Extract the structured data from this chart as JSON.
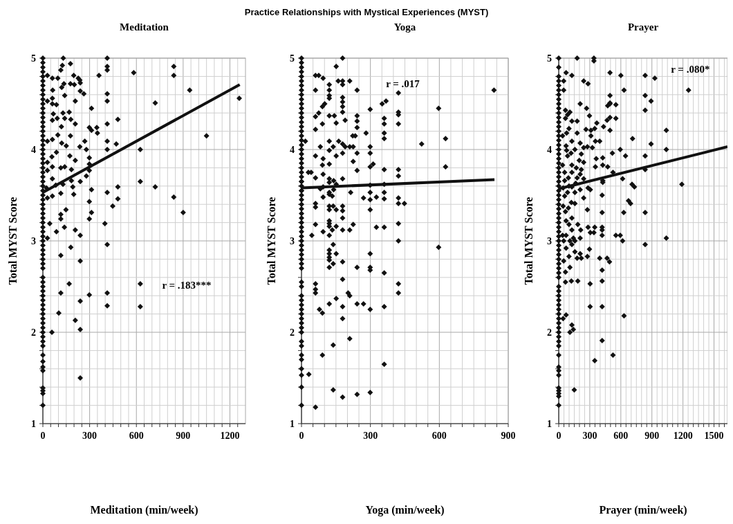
{
  "chart_data": [
    {
      "type": "scatter",
      "title": "Meditation",
      "xlabel": "Meditation (min/week)",
      "ylabel": "Total MYST Score",
      "xlim": [
        0,
        1300
      ],
      "ylim": [
        1,
        5
      ],
      "xticks": [
        0,
        {
          "value": 50,
          "label": null
        },
        {
          "value": 100,
          "label": null
        },
        {
          "value": 150,
          "label": null
        },
        {
          "value": 200,
          "label": null
        },
        {
          "value": 250,
          "label": null
        },
        300,
        {
          "value": 350,
          "label": null
        },
        {
          "value": 400,
          "label": null
        },
        {
          "value": 450,
          "label": null
        },
        {
          "value": 500,
          "label": null
        },
        {
          "value": 550,
          "label": null
        },
        600,
        {
          "value": 650,
          "label": null
        },
        {
          "value": 700,
          "label": null
        },
        {
          "value": 750,
          "label": null
        },
        {
          "value": 800,
          "label": null
        },
        {
          "value": 850,
          "label": null
        },
        900,
        {
          "value": 950,
          "label": null
        },
        {
          "value": 1000,
          "label": null
        },
        {
          "value": 1050,
          "label": null
        },
        {
          "value": 1100,
          "label": null
        },
        {
          "value": 1150,
          "label": null
        },
        1200,
        {
          "value": 1250,
          "label": null
        }
      ],
      "yticks": [
        1,
        {
          "value": 1.2,
          "label": null
        },
        {
          "value": 1.4,
          "label": null
        },
        {
          "value": 1.6,
          "label": null
        },
        {
          "value": 1.8,
          "label": null
        },
        2,
        {
          "value": 2.2,
          "label": null
        },
        {
          "value": 2.4,
          "label": null
        },
        {
          "value": 2.6,
          "label": null
        },
        {
          "value": 2.8,
          "label": null
        },
        3,
        {
          "value": 3.2,
          "label": null
        },
        {
          "value": 3.4,
          "label": null
        },
        {
          "value": 3.6,
          "label": null
        },
        {
          "value": 3.8,
          "label": null
        },
        4,
        {
          "value": 4.2,
          "label": null
        },
        {
          "value": 4.4,
          "label": null
        },
        {
          "value": 4.6,
          "label": null
        },
        {
          "value": 4.8,
          "label": null
        },
        5
      ],
      "grid": true,
      "annotations": [
        "Practice Relationships with Mystical Experiences (MYST)",
        "r = .183***"
      ],
      "series": [
        {
          "marker": "diamond",
          "color": "#111111",
          "x": [
            0,
            0,
            0,
            0,
            0,
            0,
            0,
            0,
            0,
            0,
            0,
            0,
            0,
            0,
            0,
            0,
            0,
            0,
            0,
            0,
            0,
            0,
            0,
            0,
            0,
            0,
            0,
            0,
            0,
            0,
            0,
            0,
            0,
            0,
            0,
            0,
            0,
            0,
            0,
            0,
            0,
            0,
            0,
            0,
            0,
            0,
            0,
            0,
            0,
            0,
            0,
            0,
            0,
            0,
            0,
            0,
            0,
            0,
            0,
            0,
            0,
            0,
            0,
            0,
            0,
            0,
            0,
            0,
            0,
            0,
            0,
            131,
            413,
            177,
            125,
            413,
            840,
            413,
            115,
            29,
            360,
            583,
            840,
            61,
            96,
            227,
            237,
            240,
            198,
            135,
            177,
            202,
            121,
            942,
            240,
            263,
            63,
            140,
            413,
            61,
            29,
            208,
            413,
            721,
            1260,
            61,
            87,
            312,
            169,
            129,
            67,
            481,
            61,
            92,
            140,
            179,
            208,
            413,
            119,
            298,
            346,
            312,
            350,
            177,
            1050,
            96,
            29,
            61,
            121,
            269,
            413,
            471,
            237,
            150,
            279,
            413,
            625,
            87,
            173,
            58,
            298,
            29,
            208,
            140,
            115,
            298,
            61,
            183,
            298,
            29,
            279,
            61,
            625,
            240,
            183,
            721,
            481,
            129,
            83,
            192,
            23,
            312,
            413,
            115,
            198,
            61,
            840,
            29,
            481,
            298,
            448,
            148,
            312,
            900,
            115,
            115,
            298,
            44,
            398,
            138,
            208,
            87,
            240,
            29,
            413,
            179,
            115,
            240,
            625,
            169,
            115,
            413,
            298,
            240,
            413,
            625,
            102,
            208,
            240,
            58,
            240
          ],
          "values": [
            1.2,
            1.33,
            1.36,
            1.39,
            1.58,
            1.62,
            1.68,
            1.75,
            1.85,
            1.9,
            1.95,
            2.0,
            2.05,
            2.1,
            2.15,
            2.2,
            2.25,
            2.3,
            2.35,
            2.4,
            2.45,
            2.5,
            2.55,
            2.6,
            2.7,
            2.75,
            2.8,
            2.85,
            2.9,
            2.95,
            3.0,
            3.05,
            3.1,
            3.15,
            3.2,
            3.25,
            3.3,
            3.35,
            3.4,
            3.45,
            3.5,
            3.55,
            3.6,
            3.65,
            3.7,
            3.75,
            3.8,
            3.85,
            3.9,
            3.95,
            4.0,
            4.05,
            4.1,
            4.15,
            4.2,
            4.25,
            4.3,
            4.35,
            4.4,
            4.45,
            4.5,
            4.55,
            4.6,
            4.65,
            4.7,
            4.75,
            4.8,
            4.85,
            4.9,
            4.95,
            5.0,
            5.0,
            5.0,
            4.94,
            4.92,
            4.91,
            4.91,
            4.87,
            4.87,
            4.81,
            4.81,
            4.84,
            4.81,
            4.78,
            4.78,
            4.78,
            4.76,
            4.73,
            4.81,
            4.72,
            4.72,
            4.71,
            4.68,
            4.65,
            4.64,
            4.61,
            4.65,
            4.59,
            4.61,
            4.56,
            4.53,
            4.53,
            4.53,
            4.51,
            4.56,
            4.5,
            4.49,
            4.45,
            4.41,
            4.4,
            4.39,
            4.33,
            4.32,
            4.34,
            4.34,
            4.33,
            4.28,
            4.28,
            4.25,
            4.24,
            4.24,
            4.21,
            4.18,
            4.15,
            4.15,
            4.16,
            4.09,
            4.11,
            4.07,
            4.09,
            4.09,
            4.06,
            4.03,
            4.04,
            4.0,
            4.0,
            4.0,
            3.97,
            3.93,
            3.92,
            3.91,
            3.86,
            3.88,
            3.81,
            3.8,
            3.84,
            3.81,
            3.78,
            3.77,
            3.77,
            3.71,
            3.68,
            3.65,
            3.65,
            3.66,
            3.59,
            3.59,
            3.62,
            3.61,
            3.59,
            3.58,
            3.56,
            3.53,
            3.52,
            3.51,
            3.49,
            3.48,
            3.47,
            3.46,
            3.43,
            3.38,
            3.34,
            3.31,
            3.31,
            3.29,
            3.24,
            3.24,
            3.19,
            3.19,
            3.15,
            3.12,
            3.1,
            3.06,
            3.03,
            2.96,
            2.93,
            2.84,
            2.78,
            2.53,
            2.53,
            2.43,
            2.43,
            2.41,
            2.34,
            2.29,
            2.28,
            2.21,
            2.13,
            2.03,
            2.0,
            1.5
          ]
        },
        {
          "type": "line",
          "color": "#111111",
          "x": [
            0,
            1263
          ],
          "values": [
            3.53,
            4.71
          ]
        }
      ]
    },
    {
      "type": "scatter",
      "title": "Yoga",
      "xlabel": "Yoga (min/week)",
      "ylabel": "Total MYST Score",
      "xlim": [
        0,
        900
      ],
      "ylim": [
        1,
        5
      ],
      "xticks": [
        0,
        {
          "value": 50,
          "label": null
        },
        {
          "value": 100,
          "label": null
        },
        {
          "value": 150,
          "label": null
        },
        {
          "value": 200,
          "label": null
        },
        {
          "value": 250,
          "label": null
        },
        300,
        {
          "value": 350,
          "label": null
        },
        {
          "value": 400,
          "label": null
        },
        {
          "value": 450,
          "label": null
        },
        {
          "value": 500,
          "label": null
        },
        {
          "value": 550,
          "label": null
        },
        600,
        {
          "value": 650,
          "label": null
        },
        {
          "value": 700,
          "label": null
        },
        {
          "value": 750,
          "label": null
        },
        {
          "value": 800,
          "label": null
        },
        {
          "value": 850,
          "label": null
        },
        900
      ],
      "yticks": [
        1,
        {
          "value": 1.2,
          "label": null
        },
        {
          "value": 1.4,
          "label": null
        },
        {
          "value": 1.6,
          "label": null
        },
        {
          "value": 1.8,
          "label": null
        },
        2,
        {
          "value": 2.2,
          "label": null
        },
        {
          "value": 2.4,
          "label": null
        },
        {
          "value": 2.6,
          "label": null
        },
        {
          "value": 2.8,
          "label": null
        },
        3,
        {
          "value": 3.2,
          "label": null
        },
        {
          "value": 3.4,
          "label": null
        },
        {
          "value": 3.6,
          "label": null
        },
        {
          "value": 3.8,
          "label": null
        },
        4,
        {
          "value": 4.2,
          "label": null
        },
        {
          "value": 4.4,
          "label": null
        },
        {
          "value": 4.6,
          "label": null
        },
        {
          "value": 4.8,
          "label": null
        },
        5
      ],
      "grid": true,
      "annotations": [
        "r = .017"
      ],
      "series": [
        {
          "marker": "diamond",
          "color": "#111111",
          "x": [
            0,
            0,
            0,
            0,
            0,
            0,
            0,
            0,
            0,
            0,
            0,
            0,
            0,
            0,
            0,
            0,
            0,
            0,
            0,
            0,
            0,
            0,
            0,
            0,
            0,
            0,
            0,
            0,
            0,
            0,
            0,
            0,
            0,
            0,
            0,
            0,
            0,
            0,
            0,
            0,
            0,
            0,
            0,
            0,
            0,
            0,
            0,
            0,
            0,
            0,
            0,
            0,
            0,
            0,
            0,
            0,
            0,
            0,
            0,
            0,
            0,
            0,
            0,
            0,
            0,
            0,
            0,
            0,
            179,
            151,
            61,
            75,
            94,
            160,
            179,
            210,
            179,
            121,
            61,
            242,
            121,
            838,
            422,
            121,
            121,
            179,
            368,
            351,
            179,
            101,
            91,
            179,
            299,
            597,
            179,
            75,
            422,
            422,
            121,
            143,
            242,
            190,
            360,
            61,
            242,
            360,
            91,
            151,
            422,
            242,
            61,
            281,
            360,
            234,
            223,
            360,
            627,
            121,
            17,
            162,
            179,
            523,
            82,
            138,
            210,
            225,
            299,
            190,
            121,
            179,
            242,
            299,
            61,
            151,
            94,
            121,
            225,
            312,
            299,
            627,
            91,
            422,
            242,
            360,
            30,
            42,
            94,
            422,
            179,
            121,
            61,
            140,
            82,
            94,
            121,
            151,
            299,
            360,
            140,
            214,
            299,
            121,
            360,
            121,
            134,
            94,
            270,
            326,
            299,
            360,
            422,
            61,
            422,
            448,
            121,
            138,
            179,
            61,
            121,
            151,
            299,
            179,
            179,
            121,
            121,
            61,
            225,
            422,
            121,
            151,
            326,
            360,
            134,
            179,
            210,
            94,
            45,
            121,
            422,
            138,
            597,
            121,
            121,
            151,
            299,
            121,
            121,
            179,
            138,
            121,
            242,
            299,
            299,
            360,
            179,
            61,
            422,
            61,
            61,
            422,
            203,
            210,
            151,
            121,
            242,
            270,
            179,
            360,
            299,
            78,
            91,
            179,
            210,
            138,
            91,
            360,
            32,
            138,
            299,
            242,
            179,
            61
          ],
          "values": [
            1.2,
            1.4,
            1.53,
            1.6,
            1.7,
            1.75,
            1.85,
            1.9,
            2.0,
            2.05,
            2.1,
            2.15,
            2.2,
            2.25,
            2.3,
            2.35,
            2.4,
            2.5,
            2.55,
            2.7,
            2.75,
            2.8,
            2.85,
            2.9,
            2.95,
            3.0,
            3.05,
            3.1,
            3.15,
            3.2,
            3.25,
            3.3,
            3.35,
            3.4,
            3.45,
            3.5,
            3.55,
            3.6,
            3.65,
            3.7,
            3.75,
            3.8,
            3.85,
            3.9,
            3.95,
            4.0,
            4.05,
            4.1,
            4.15,
            4.2,
            4.25,
            4.3,
            4.35,
            4.4,
            4.45,
            4.5,
            4.55,
            4.6,
            4.65,
            4.7,
            4.75,
            4.8,
            4.85,
            4.9,
            4.95,
            5.0,
            3.55,
            3.65,
            5.0,
            4.91,
            4.81,
            4.81,
            4.78,
            4.75,
            4.75,
            4.75,
            4.71,
            4.71,
            4.65,
            4.65,
            4.65,
            4.65,
            4.62,
            4.59,
            4.56,
            4.57,
            4.53,
            4.5,
            4.52,
            4.5,
            4.47,
            4.47,
            4.44,
            4.45,
            4.41,
            4.4,
            4.41,
            4.38,
            4.37,
            4.37,
            4.37,
            4.32,
            4.34,
            4.36,
            4.31,
            4.28,
            4.28,
            4.29,
            4.28,
            4.24,
            4.22,
            4.18,
            4.18,
            4.15,
            4.15,
            4.12,
            4.12,
            4.09,
            4.09,
            4.09,
            4.06,
            4.06,
            4.03,
            4.03,
            4.03,
            4.03,
            4.03,
            4.03,
            3.99,
            3.96,
            3.96,
            3.96,
            3.93,
            3.93,
            3.9,
            3.84,
            3.87,
            3.84,
            3.81,
            3.81,
            3.83,
            3.78,
            3.77,
            3.78,
            3.75,
            3.75,
            3.73,
            3.71,
            3.68,
            3.68,
            3.69,
            3.66,
            3.57,
            3.59,
            3.64,
            3.62,
            3.61,
            3.62,
            3.56,
            3.53,
            3.53,
            3.53,
            3.53,
            3.51,
            3.49,
            3.48,
            3.47,
            3.48,
            3.45,
            3.46,
            3.47,
            3.41,
            3.41,
            3.41,
            3.38,
            3.38,
            3.38,
            3.37,
            3.34,
            3.34,
            3.34,
            3.33,
            3.25,
            3.22,
            3.19,
            3.18,
            3.18,
            3.19,
            3.16,
            3.16,
            3.15,
            3.15,
            3.12,
            3.12,
            3.12,
            3.1,
            3.06,
            3.06,
            3.0,
            2.96,
            2.93,
            2.9,
            2.86,
            2.86,
            2.86,
            2.82,
            2.79,
            2.77,
            2.75,
            2.71,
            2.71,
            2.71,
            2.68,
            2.65,
            2.58,
            2.53,
            2.53,
            2.47,
            2.43,
            2.43,
            2.43,
            2.4,
            2.37,
            2.31,
            2.31,
            2.31,
            2.28,
            2.28,
            2.25,
            2.25,
            2.21,
            2.15,
            1.93,
            1.86,
            1.75,
            1.65,
            1.54,
            1.37,
            1.34,
            1.32,
            1.29,
            1.18
          ]
        },
        {
          "type": "line",
          "color": "#111111",
          "x": [
            0,
            840
          ],
          "values": [
            3.58,
            3.67
          ]
        }
      ]
    },
    {
      "type": "scatter",
      "title": "Prayer",
      "xlabel": "Prayer (min/week)",
      "ylabel": "Total MYST Score",
      "xlim": [
        0,
        1630
      ],
      "ylim": [
        1,
        5
      ],
      "xticks": [
        0,
        {
          "value": 50,
          "label": null
        },
        {
          "value": 100,
          "label": null
        },
        {
          "value": 150,
          "label": null
        },
        {
          "value": 200,
          "label": null
        },
        {
          "value": 250,
          "label": null
        },
        300,
        {
          "value": 350,
          "label": null
        },
        {
          "value": 400,
          "label": null
        },
        {
          "value": 450,
          "label": null
        },
        {
          "value": 500,
          "label": null
        },
        {
          "value": 550,
          "label": null
        },
        600,
        {
          "value": 650,
          "label": null
        },
        {
          "value": 700,
          "label": null
        },
        {
          "value": 750,
          "label": null
        },
        {
          "value": 800,
          "label": null
        },
        {
          "value": 850,
          "label": null
        },
        900,
        {
          "value": 950,
          "label": null
        },
        {
          "value": 1000,
          "label": null
        },
        {
          "value": 1050,
          "label": null
        },
        {
          "value": 1100,
          "label": null
        },
        {
          "value": 1150,
          "label": null
        },
        1200,
        {
          "value": 1250,
          "label": null
        },
        {
          "value": 1300,
          "label": null
        },
        {
          "value": 1350,
          "label": null
        },
        {
          "value": 1400,
          "label": null
        },
        {
          "value": 1450,
          "label": null
        },
        1500,
        {
          "value": 1550,
          "label": null
        },
        {
          "value": 1600,
          "label": null
        }
      ],
      "yticks": [
        1,
        {
          "value": 1.2,
          "label": null
        },
        {
          "value": 1.4,
          "label": null
        },
        {
          "value": 1.6,
          "label": null
        },
        {
          "value": 1.8,
          "label": null
        },
        2,
        {
          "value": 2.2,
          "label": null
        },
        {
          "value": 2.4,
          "label": null
        },
        {
          "value": 2.6,
          "label": null
        },
        {
          "value": 2.8,
          "label": null
        },
        3,
        {
          "value": 3.2,
          "label": null
        },
        {
          "value": 3.4,
          "label": null
        },
        {
          "value": 3.6,
          "label": null
        },
        {
          "value": 3.8,
          "label": null
        },
        4,
        {
          "value": 4.2,
          "label": null
        },
        {
          "value": 4.4,
          "label": null
        },
        {
          "value": 4.6,
          "label": null
        },
        {
          "value": 4.8,
          "label": null
        },
        5
      ],
      "grid": true,
      "annotations": [
        "r = .080*"
      ],
      "series": [
        {
          "marker": "diamond",
          "color": "#111111",
          "x": [
            0,
            0,
            0,
            0,
            0,
            0,
            0,
            0,
            0,
            0,
            0,
            0,
            0,
            0,
            0,
            0,
            0,
            0,
            0,
            0,
            0,
            0,
            0,
            0,
            0,
            0,
            0,
            0,
            0,
            0,
            0,
            0,
            0,
            0,
            0,
            0,
            0,
            0,
            0,
            0,
            0,
            0,
            0,
            0,
            0,
            0,
            0,
            0,
            0,
            0,
            0,
            0,
            0,
            0,
            0,
            0,
            0,
            0,
            0,
            0,
            0,
            0,
            0,
            0,
            0,
            0,
            0,
            0,
            0,
            0,
            178,
            340,
            340,
            71,
            127,
            495,
            600,
            835,
            928,
            48,
            241,
            283,
            48,
            631,
            1254,
            495,
            835,
            495,
            892,
            207,
            495,
            552,
            473,
            65,
            835,
            269,
            108,
            85,
            297,
            495,
            552,
            467,
            127,
            178,
            65,
            368,
            433,
            495,
            1039,
            263,
            311,
            348,
            178,
            76,
            99,
            311,
            37,
            396,
            354,
            713,
            127,
            207,
            71,
            277,
            892,
            594,
            1039,
            156,
            241,
            325,
            76,
            119,
            218,
            518,
            645,
            835,
            85,
            425,
            362,
            198,
            127,
            241,
            37,
            425,
            170,
            473,
            835,
            354,
            127,
            218,
            57,
            524,
            207,
            617,
            93,
            178,
            425,
            241,
            57,
            164,
            99,
            283,
            708,
            731,
            1189,
            127,
            42,
            305,
            207,
            425,
            85,
            156,
            419,
            241,
            57,
            674,
            694,
            122,
            42,
            156,
            93,
            277,
            65,
            419,
            628,
            835,
            127,
            71,
            184,
            99,
            283,
            348,
            419,
            419,
            127,
            212,
            305,
            340,
            37,
            71,
            419,
            552,
            594,
            141,
            207,
            1039,
            48,
            108,
            156,
            617,
            835,
            127,
            297,
            71,
            156,
            207,
            99,
            178,
            218,
            396,
            467,
            490,
            277,
            48,
            108,
            65,
            419,
            122,
            65,
            184,
            419,
            303,
            419,
            303,
            631,
            71,
            42,
            127,
            141,
            108,
            419,
            524,
            348,
            150
          ],
          "values": [
            1.2,
            1.3,
            1.33,
            1.36,
            1.39,
            1.53,
            1.58,
            1.62,
            1.75,
            1.85,
            1.9,
            1.95,
            2.0,
            2.05,
            2.1,
            2.15,
            2.2,
            2.25,
            2.3,
            2.35,
            2.4,
            2.45,
            2.5,
            2.6,
            2.65,
            2.7,
            2.75,
            2.8,
            2.85,
            2.9,
            2.95,
            3.0,
            3.05,
            3.1,
            3.15,
            3.2,
            3.25,
            3.3,
            3.35,
            3.4,
            3.45,
            3.5,
            3.55,
            3.6,
            3.65,
            3.7,
            3.75,
            3.8,
            3.85,
            3.9,
            3.95,
            4.0,
            4.05,
            4.1,
            4.15,
            4.2,
            4.25,
            4.3,
            4.35,
            4.4,
            4.45,
            4.5,
            4.55,
            4.6,
            4.65,
            4.7,
            4.75,
            4.8,
            4.9,
            5.0,
            5.0,
            5.0,
            4.97,
            4.84,
            4.81,
            4.84,
            4.81,
            4.81,
            4.78,
            4.75,
            4.75,
            4.72,
            4.65,
            4.65,
            4.65,
            4.59,
            4.59,
            4.51,
            4.53,
            4.5,
            4.5,
            4.49,
            4.48,
            4.43,
            4.43,
            4.45,
            4.41,
            4.38,
            4.37,
            4.35,
            4.34,
            4.32,
            4.31,
            4.31,
            4.34,
            4.29,
            4.25,
            4.21,
            4.21,
            4.22,
            4.21,
            4.23,
            4.18,
            4.18,
            4.23,
            4.15,
            4.15,
            4.09,
            4.09,
            4.12,
            4.09,
            4.07,
            4.04,
            4.03,
            4.06,
            4.0,
            4.0,
            4.0,
            4.02,
            4.02,
            3.99,
            3.96,
            3.95,
            3.96,
            3.93,
            3.93,
            3.93,
            3.91,
            3.9,
            3.88,
            3.83,
            3.86,
            3.83,
            3.83,
            3.8,
            3.81,
            3.78,
            3.81,
            3.75,
            3.78,
            3.75,
            3.75,
            3.73,
            3.68,
            3.69,
            3.69,
            3.66,
            3.68,
            3.66,
            3.63,
            3.6,
            3.58,
            3.62,
            3.59,
            3.62,
            3.59,
            3.58,
            3.56,
            3.56,
            3.64,
            3.53,
            3.53,
            3.5,
            3.47,
            3.49,
            3.44,
            3.41,
            3.42,
            3.38,
            3.41,
            3.36,
            3.34,
            3.32,
            3.31,
            3.31,
            3.31,
            3.25,
            3.22,
            3.18,
            3.18,
            3.15,
            3.15,
            3.15,
            3.12,
            3.12,
            3.12,
            3.09,
            3.09,
            3.06,
            3.06,
            3.06,
            3.06,
            3.06,
            3.03,
            3.03,
            3.03,
            3.0,
            3.0,
            3.0,
            3.0,
            2.96,
            2.96,
            2.91,
            2.92,
            2.88,
            2.86,
            2.83,
            2.81,
            2.81,
            2.81,
            2.81,
            2.77,
            2.83,
            2.78,
            2.71,
            2.66,
            2.68,
            2.56,
            2.55,
            2.56,
            2.56,
            2.53,
            2.28,
            2.28,
            2.18,
            2.19,
            2.15,
            2.08,
            2.03,
            2.0,
            1.91,
            1.75,
            1.69,
            1.37
          ]
        },
        {
          "type": "line",
          "color": "#111111",
          "x": [
            0,
            1630
          ],
          "values": [
            3.57,
            4.03
          ]
        }
      ]
    }
  ]
}
